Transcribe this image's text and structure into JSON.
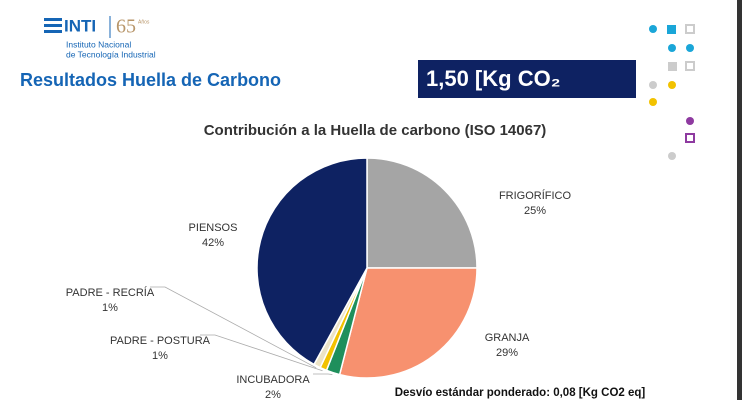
{
  "header": {
    "logo": "INTI",
    "anniversary": "65",
    "anniversary_note": "Años",
    "institute": [
      "Instituto Nacional",
      "de Tecnología Industrial"
    ],
    "title": "Resultados Huella de Carbono",
    "result": "1,50 [Kg CO₂"
  },
  "chart_data": {
    "type": "pie",
    "title": "Contribución a la Huella de carbono (ISO 14067)",
    "categories": [
      "FRIGORÍFICO",
      "GRANJA",
      "INCUBADORA",
      "PADRE - POSTURA",
      "PADRE - RECRÍA",
      "PIENSOS"
    ],
    "values": [
      25,
      29,
      2,
      1,
      1,
      42
    ],
    "value_labels": [
      "25%",
      "29%",
      "2%",
      "1%",
      "1%",
      "42%"
    ],
    "colors": [
      "#a5a5a5",
      "#f7916f",
      "#1f8f5c",
      "#f2c200",
      "#ece3c6",
      "#0e2262"
    ]
  },
  "footer": "Desvío estándar ponderado: 0,08 [Kg CO2 eq]"
}
